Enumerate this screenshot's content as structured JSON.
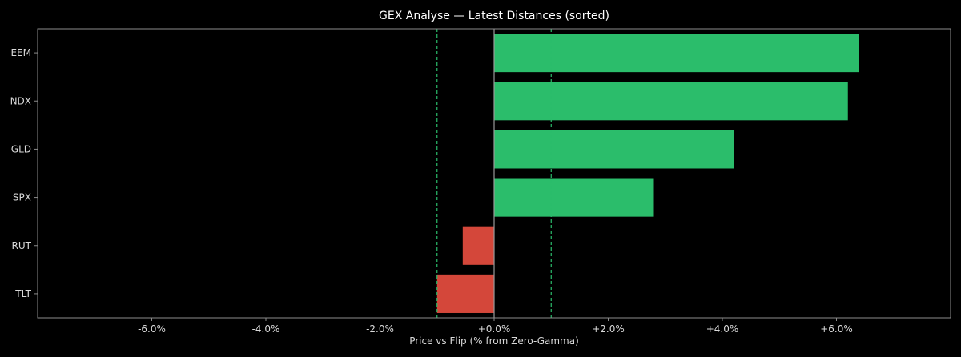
{
  "chart_data": {
    "type": "bar",
    "orientation": "horizontal",
    "title": "GEX Analyse — Latest Distances (sorted)",
    "xlabel": "Price vs Flip (% from Zero-Gamma)",
    "ylabel": "",
    "xlim": [
      -8.0,
      8.0
    ],
    "xticks": [
      -6,
      -4,
      -2,
      0,
      2,
      4,
      6
    ],
    "xtick_labels": [
      "-6.0%",
      "-4.0%",
      "-2.0%",
      "+0.0%",
      "+2.0%",
      "+4.0%",
      "+6.0%"
    ],
    "categories": [
      "EEM",
      "NDX",
      "GLD",
      "SPX",
      "RUT",
      "TLT"
    ],
    "values": [
      6.4,
      6.2,
      4.2,
      2.8,
      -0.55,
      -1.0
    ],
    "reference_lines": [
      -1.0,
      1.0
    ],
    "grid": false,
    "colors": {
      "positive": "#2bbd6b",
      "negative": "#d4473a",
      "reference": "#2bbd6b",
      "zero_line": "#9a9a9a",
      "frame": "#8c8c8c",
      "background": "#000000"
    }
  }
}
